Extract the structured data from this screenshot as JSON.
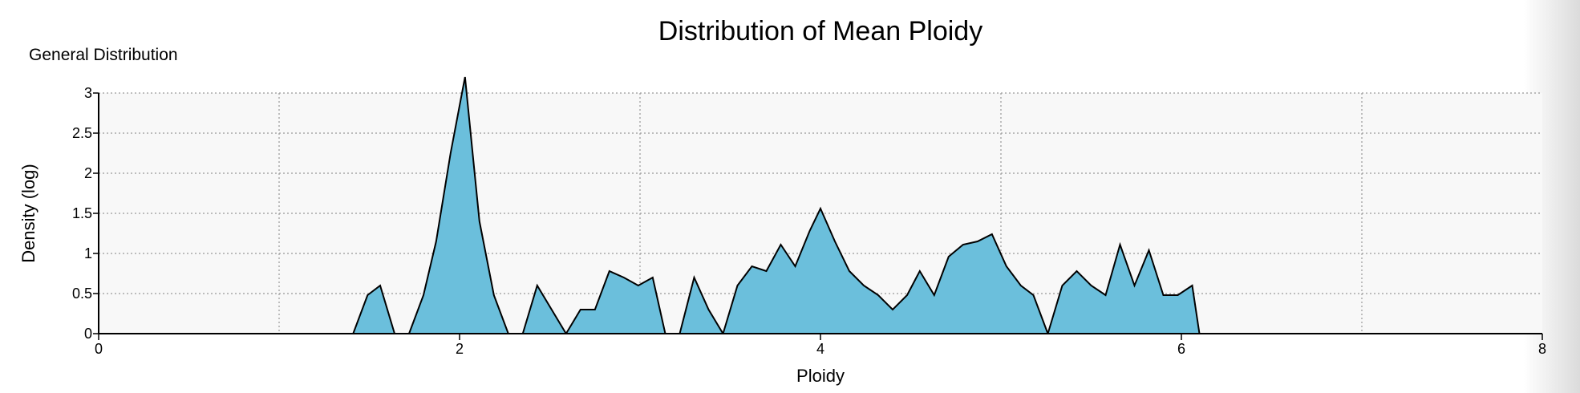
{
  "chart_data": {
    "type": "area",
    "title": "Distribution of Mean Ploidy",
    "subtitle": "General Distribution",
    "xlabel": "Ploidy",
    "ylabel": "Density (log)",
    "xlim": [
      0,
      8
    ],
    "ylim": [
      0,
      3
    ],
    "x_ticks": [
      "0",
      "2",
      "4",
      "6",
      "8"
    ],
    "y_ticks": [
      "0",
      "0.5",
      "1",
      "1.5",
      "2",
      "2.5",
      "3"
    ],
    "grid": true,
    "fill_color": "#6bbfdc",
    "line_color": "#000000",
    "plot_background": "#f8f8f8",
    "segments": [
      {
        "x": [
          1.41,
          1.49,
          1.56,
          1.64
        ],
        "y": [
          0,
          0.48,
          0.6,
          0
        ]
      },
      {
        "x": [
          1.72,
          1.8,
          1.87,
          1.95,
          2.03,
          2.11,
          2.19,
          2.27
        ],
        "y": [
          0,
          0.48,
          1.15,
          2.25,
          3.2,
          1.4,
          0.48,
          0
        ]
      },
      {
        "x": [
          2.35,
          2.43,
          2.51,
          2.59
        ],
        "y": [
          0,
          0.6,
          0.3,
          0
        ]
      },
      {
        "x": [
          2.59,
          2.67,
          2.75,
          2.83,
          2.91,
          2.99,
          3.07,
          3.14
        ],
        "y": [
          0,
          0.3,
          0.3,
          0.78,
          0.7,
          0.6,
          0.7,
          0
        ]
      },
      {
        "x": [
          3.22,
          3.3,
          3.38,
          3.46
        ],
        "y": [
          0,
          0.7,
          0.3,
          0
        ]
      },
      {
        "x": [
          3.46,
          3.54,
          3.62,
          3.7,
          3.78,
          3.86,
          3.94,
          4.0,
          4.08,
          4.16,
          4.24,
          4.32,
          4.4,
          4.48,
          4.55,
          4.63,
          4.71,
          4.79,
          4.87,
          4.95,
          5.03,
          5.11,
          5.18,
          5.26
        ],
        "y": [
          0,
          0.6,
          0.84,
          0.78,
          1.11,
          0.84,
          1.28,
          1.56,
          1.15,
          0.78,
          0.6,
          0.48,
          0.3,
          0.48,
          0.78,
          0.48,
          0.96,
          1.11,
          1.15,
          1.24,
          0.84,
          0.6,
          0.48,
          0
        ]
      },
      {
        "x": [
          5.26,
          5.34,
          5.42,
          5.5,
          5.58,
          5.66,
          5.74,
          5.82,
          5.9,
          5.98,
          6.06,
          6.1
        ],
        "y": [
          0,
          0.6,
          0.78,
          0.6,
          0.48,
          1.11,
          0.6,
          1.04,
          0.48,
          0.48,
          0.6,
          0
        ]
      }
    ]
  }
}
